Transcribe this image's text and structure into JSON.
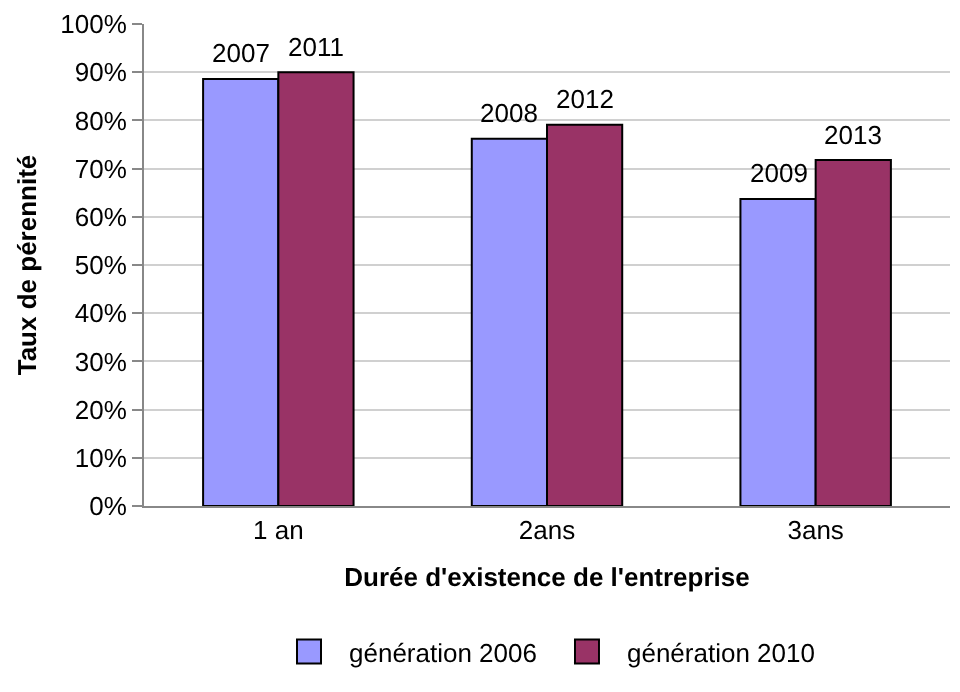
{
  "chart_data": {
    "type": "bar",
    "xlabel": "Durée d'existence de l'entreprise",
    "ylabel": "Taux de pérennité",
    "categories": [
      "1 an",
      "2ans",
      "3ans"
    ],
    "series": [
      {
        "name": "génération 2006",
        "color": "#9999ff",
        "values": [
          88.6,
          76.2,
          63.7
        ]
      },
      {
        "name": "génération 2010",
        "color": "#993366",
        "values": [
          90,
          79.1,
          71.8
        ]
      }
    ],
    "annotations": [
      {
        "text": "2007",
        "x": "1 an",
        "y": 88.6
      },
      {
        "text": "2008",
        "x": "2ans",
        "y": 76.2
      },
      {
        "text": "2009",
        "x": "3ans",
        "y": 63.7
      },
      {
        "text": "2011",
        "x": "1 an",
        "y": 90
      },
      {
        "text": "2012",
        "x": "2ans",
        "y": 79.1
      },
      {
        "text": "2013",
        "x": "3ans",
        "y": 71.8
      }
    ],
    "ylim": [
      0,
      100
    ],
    "yticks": [
      {
        "value": 0,
        "label": "0%"
      },
      {
        "value": 10,
        "label": "10%"
      },
      {
        "value": 20,
        "label": "20%"
      },
      {
        "value": 30,
        "label": "30%"
      },
      {
        "value": 40,
        "label": "40%"
      },
      {
        "value": 50,
        "label": "50%"
      },
      {
        "value": 60,
        "label": "60%"
      },
      {
        "value": 70,
        "label": "70%"
      },
      {
        "value": 80,
        "label": "80%"
      },
      {
        "value": 90,
        "label": "90%"
      },
      {
        "value": 100,
        "label": "100%"
      }
    ],
    "grid": "y",
    "legend": "bottom"
  }
}
